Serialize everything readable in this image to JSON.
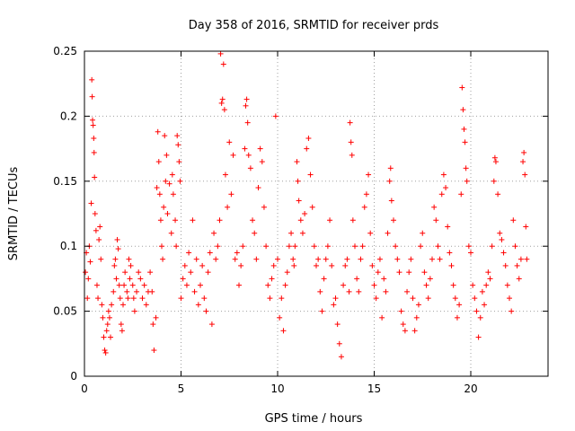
{
  "chart_data": {
    "type": "scatter",
    "title": "Day 358 of 2016, SRMTID for receiver prds",
    "xlabel": "GPS time / hours",
    "ylabel": "SRMTID / TECUs",
    "xlim": [
      0,
      24
    ],
    "ylim": [
      0,
      0.25
    ],
    "xticks": [
      0,
      5,
      10,
      15,
      20
    ],
    "xtick_labels": [
      "0",
      "5",
      "10",
      "15",
      "20"
    ],
    "yticks": [
      0,
      0.05,
      0.1,
      0.15,
      0.2,
      0.25
    ],
    "ytick_labels": [
      "0",
      "0.05",
      "0.1",
      "0.15",
      "0.2",
      "0.25"
    ],
    "grid": true,
    "marker": "plus",
    "color": "#ff0000",
    "series": [
      {
        "name": "SRMTID",
        "points": [
          [
            0.05,
            0.08
          ],
          [
            0.1,
            0.095
          ],
          [
            0.15,
            0.06
          ],
          [
            0.2,
            0.075
          ],
          [
            0.25,
            0.1
          ],
          [
            0.3,
            0.088
          ],
          [
            0.35,
            0.133
          ],
          [
            0.38,
            0.228
          ],
          [
            0.4,
            0.215
          ],
          [
            0.42,
            0.197
          ],
          [
            0.45,
            0.193
          ],
          [
            0.48,
            0.183
          ],
          [
            0.5,
            0.172
          ],
          [
            0.52,
            0.153
          ],
          [
            0.55,
            0.125
          ],
          [
            0.6,
            0.112
          ],
          [
            0.65,
            0.07
          ],
          [
            0.7,
            0.06
          ],
          [
            0.75,
            0.105
          ],
          [
            0.8,
            0.115
          ],
          [
            0.85,
            0.09
          ],
          [
            0.9,
            0.055
          ],
          [
            0.95,
            0.045
          ],
          [
            1.0,
            0.03
          ],
          [
            1.05,
            0.02
          ],
          [
            1.1,
            0.018
          ],
          [
            1.15,
            0.035
          ],
          [
            1.2,
            0.04
          ],
          [
            1.25,
            0.05
          ],
          [
            1.3,
            0.045
          ],
          [
            1.35,
            0.03
          ],
          [
            1.4,
            0.055
          ],
          [
            1.5,
            0.065
          ],
          [
            1.55,
            0.085
          ],
          [
            1.6,
            0.09
          ],
          [
            1.65,
            0.075
          ],
          [
            1.7,
            0.105
          ],
          [
            1.75,
            0.098
          ],
          [
            1.8,
            0.07
          ],
          [
            1.85,
            0.06
          ],
          [
            1.9,
            0.04
          ],
          [
            1.95,
            0.035
          ],
          [
            2.0,
            0.055
          ],
          [
            2.05,
            0.07
          ],
          [
            2.1,
            0.08
          ],
          [
            2.2,
            0.065
          ],
          [
            2.25,
            0.06
          ],
          [
            2.3,
            0.09
          ],
          [
            2.35,
            0.075
          ],
          [
            2.4,
            0.085
          ],
          [
            2.5,
            0.07
          ],
          [
            2.55,
            0.06
          ],
          [
            2.6,
            0.05
          ],
          [
            2.7,
            0.065
          ],
          [
            2.8,
            0.08
          ],
          [
            2.9,
            0.075
          ],
          [
            3.0,
            0.06
          ],
          [
            3.1,
            0.07
          ],
          [
            3.2,
            0.055
          ],
          [
            3.3,
            0.065
          ],
          [
            3.4,
            0.08
          ],
          [
            3.5,
            0.065
          ],
          [
            3.55,
            0.04
          ],
          [
            3.6,
            0.02
          ],
          [
            3.7,
            0.045
          ],
          [
            3.75,
            0.145
          ],
          [
            3.8,
            0.188
          ],
          [
            3.85,
            0.165
          ],
          [
            3.9,
            0.14
          ],
          [
            3.95,
            0.12
          ],
          [
            4.0,
            0.1
          ],
          [
            4.05,
            0.09
          ],
          [
            4.1,
            0.13
          ],
          [
            4.15,
            0.185
          ],
          [
            4.2,
            0.15
          ],
          [
            4.25,
            0.17
          ],
          [
            4.3,
            0.125
          ],
          [
            4.4,
            0.148
          ],
          [
            4.5,
            0.11
          ],
          [
            4.55,
            0.155
          ],
          [
            4.6,
            0.14
          ],
          [
            4.7,
            0.12
          ],
          [
            4.75,
            0.1
          ],
          [
            4.8,
            0.185
          ],
          [
            4.85,
            0.178
          ],
          [
            4.9,
            0.165
          ],
          [
            4.95,
            0.15
          ],
          [
            5.0,
            0.06
          ],
          [
            5.1,
            0.075
          ],
          [
            5.2,
            0.085
          ],
          [
            5.3,
            0.07
          ],
          [
            5.4,
            0.095
          ],
          [
            5.5,
            0.08
          ],
          [
            5.6,
            0.12
          ],
          [
            5.7,
            0.065
          ],
          [
            5.8,
            0.09
          ],
          [
            5.9,
            0.055
          ],
          [
            6.0,
            0.07
          ],
          [
            6.1,
            0.085
          ],
          [
            6.2,
            0.06
          ],
          [
            6.3,
            0.05
          ],
          [
            6.4,
            0.08
          ],
          [
            6.5,
            0.095
          ],
          [
            6.6,
            0.04
          ],
          [
            6.7,
            0.11
          ],
          [
            6.8,
            0.09
          ],
          [
            6.9,
            0.1
          ],
          [
            7.0,
            0.12
          ],
          [
            7.05,
            0.248
          ],
          [
            7.1,
            0.21
          ],
          [
            7.15,
            0.213
          ],
          [
            7.2,
            0.24
          ],
          [
            7.25,
            0.205
          ],
          [
            7.3,
            0.155
          ],
          [
            7.4,
            0.13
          ],
          [
            7.5,
            0.18
          ],
          [
            7.6,
            0.14
          ],
          [
            7.7,
            0.17
          ],
          [
            7.8,
            0.09
          ],
          [
            7.9,
            0.095
          ],
          [
            8.0,
            0.07
          ],
          [
            8.1,
            0.085
          ],
          [
            8.2,
            0.1
          ],
          [
            8.3,
            0.175
          ],
          [
            8.35,
            0.208
          ],
          [
            8.4,
            0.213
          ],
          [
            8.45,
            0.195
          ],
          [
            8.5,
            0.17
          ],
          [
            8.6,
            0.16
          ],
          [
            8.7,
            0.12
          ],
          [
            8.8,
            0.11
          ],
          [
            8.9,
            0.09
          ],
          [
            9.0,
            0.145
          ],
          [
            9.1,
            0.175
          ],
          [
            9.2,
            0.165
          ],
          [
            9.3,
            0.13
          ],
          [
            9.4,
            0.1
          ],
          [
            9.5,
            0.07
          ],
          [
            9.6,
            0.06
          ],
          [
            9.7,
            0.075
          ],
          [
            9.8,
            0.085
          ],
          [
            9.9,
            0.2
          ],
          [
            10.0,
            0.09
          ],
          [
            10.1,
            0.045
          ],
          [
            10.2,
            0.06
          ],
          [
            10.3,
            0.035
          ],
          [
            10.4,
            0.07
          ],
          [
            10.5,
            0.08
          ],
          [
            10.6,
            0.1
          ],
          [
            10.7,
            0.11
          ],
          [
            10.8,
            0.09
          ],
          [
            10.85,
            0.085
          ],
          [
            10.9,
            0.1
          ],
          [
            11.0,
            0.165
          ],
          [
            11.05,
            0.15
          ],
          [
            11.1,
            0.135
          ],
          [
            11.2,
            0.12
          ],
          [
            11.3,
            0.11
          ],
          [
            11.4,
            0.125
          ],
          [
            11.5,
            0.175
          ],
          [
            11.6,
            0.183
          ],
          [
            11.7,
            0.155
          ],
          [
            11.8,
            0.13
          ],
          [
            11.9,
            0.1
          ],
          [
            12.0,
            0.085
          ],
          [
            12.1,
            0.09
          ],
          [
            12.2,
            0.065
          ],
          [
            12.3,
            0.05
          ],
          [
            12.4,
            0.075
          ],
          [
            12.5,
            0.09
          ],
          [
            12.6,
            0.1
          ],
          [
            12.7,
            0.12
          ],
          [
            12.8,
            0.085
          ],
          [
            12.9,
            0.055
          ],
          [
            13.0,
            0.06
          ],
          [
            13.1,
            0.04
          ],
          [
            13.2,
            0.025
          ],
          [
            13.3,
            0.015
          ],
          [
            13.4,
            0.07
          ],
          [
            13.5,
            0.085
          ],
          [
            13.6,
            0.09
          ],
          [
            13.7,
            0.065
          ],
          [
            13.75,
            0.195
          ],
          [
            13.8,
            0.18
          ],
          [
            13.85,
            0.17
          ],
          [
            13.9,
            0.12
          ],
          [
            14.0,
            0.1
          ],
          [
            14.1,
            0.075
          ],
          [
            14.2,
            0.065
          ],
          [
            14.3,
            0.09
          ],
          [
            14.4,
            0.1
          ],
          [
            14.5,
            0.13
          ],
          [
            14.6,
            0.14
          ],
          [
            14.7,
            0.155
          ],
          [
            14.8,
            0.11
          ],
          [
            14.9,
            0.085
          ],
          [
            15.0,
            0.07
          ],
          [
            15.1,
            0.06
          ],
          [
            15.2,
            0.08
          ],
          [
            15.3,
            0.09
          ],
          [
            15.4,
            0.045
          ],
          [
            15.5,
            0.075
          ],
          [
            15.6,
            0.065
          ],
          [
            15.7,
            0.11
          ],
          [
            15.8,
            0.15
          ],
          [
            15.85,
            0.16
          ],
          [
            15.9,
            0.135
          ],
          [
            16.0,
            0.12
          ],
          [
            16.1,
            0.1
          ],
          [
            16.2,
            0.09
          ],
          [
            16.3,
            0.08
          ],
          [
            16.4,
            0.05
          ],
          [
            16.5,
            0.04
          ],
          [
            16.6,
            0.035
          ],
          [
            16.7,
            0.065
          ],
          [
            16.8,
            0.08
          ],
          [
            16.9,
            0.09
          ],
          [
            17.0,
            0.06
          ],
          [
            17.1,
            0.035
          ],
          [
            17.2,
            0.045
          ],
          [
            17.3,
            0.055
          ],
          [
            17.4,
            0.1
          ],
          [
            17.5,
            0.11
          ],
          [
            17.6,
            0.08
          ],
          [
            17.7,
            0.07
          ],
          [
            17.8,
            0.06
          ],
          [
            17.9,
            0.075
          ],
          [
            18.0,
            0.09
          ],
          [
            18.1,
            0.13
          ],
          [
            18.2,
            0.12
          ],
          [
            18.3,
            0.1
          ],
          [
            18.4,
            0.09
          ],
          [
            18.5,
            0.14
          ],
          [
            18.6,
            0.155
          ],
          [
            18.7,
            0.145
          ],
          [
            18.8,
            0.115
          ],
          [
            18.9,
            0.095
          ],
          [
            19.0,
            0.085
          ],
          [
            19.1,
            0.07
          ],
          [
            19.2,
            0.06
          ],
          [
            19.3,
            0.045
          ],
          [
            19.4,
            0.055
          ],
          [
            19.5,
            0.14
          ],
          [
            19.55,
            0.222
          ],
          [
            19.6,
            0.205
          ],
          [
            19.65,
            0.19
          ],
          [
            19.7,
            0.18
          ],
          [
            19.75,
            0.16
          ],
          [
            19.8,
            0.15
          ],
          [
            19.9,
            0.1
          ],
          [
            20.0,
            0.095
          ],
          [
            20.1,
            0.07
          ],
          [
            20.2,
            0.06
          ],
          [
            20.3,
            0.05
          ],
          [
            20.4,
            0.03
          ],
          [
            20.5,
            0.045
          ],
          [
            20.6,
            0.065
          ],
          [
            20.7,
            0.055
          ],
          [
            20.8,
            0.07
          ],
          [
            20.9,
            0.08
          ],
          [
            21.0,
            0.075
          ],
          [
            21.1,
            0.1
          ],
          [
            21.2,
            0.15
          ],
          [
            21.25,
            0.168
          ],
          [
            21.3,
            0.165
          ],
          [
            21.4,
            0.14
          ],
          [
            21.5,
            0.11
          ],
          [
            21.6,
            0.105
          ],
          [
            21.7,
            0.095
          ],
          [
            21.8,
            0.085
          ],
          [
            21.9,
            0.07
          ],
          [
            22.0,
            0.06
          ],
          [
            22.1,
            0.05
          ],
          [
            22.2,
            0.12
          ],
          [
            22.3,
            0.1
          ],
          [
            22.4,
            0.085
          ],
          [
            22.5,
            0.075
          ],
          [
            22.6,
            0.09
          ],
          [
            22.7,
            0.165
          ],
          [
            22.75,
            0.172
          ],
          [
            22.8,
            0.155
          ],
          [
            22.85,
            0.115
          ],
          [
            22.9,
            0.09
          ]
        ]
      }
    ]
  }
}
